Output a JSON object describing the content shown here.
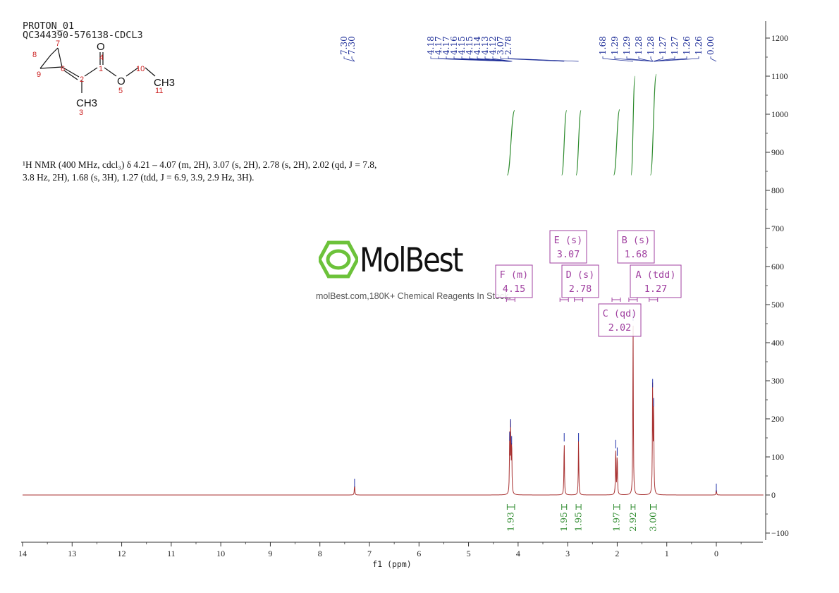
{
  "header": {
    "line1": "PROTON_01",
    "line2": "QC344390-576138-CDCL3"
  },
  "nmr_description": {
    "line1": "¹H NMR (400 MHz, cdcl₃) δ 4.21 – 4.07 (m, 2H), 3.07 (s, 2H), 2.78 (s, 2H), 2.02 (qd, J = 7.8,",
    "line2": "3.8 Hz, 2H), 1.68 (s, 3H), 1.27 (tdd, J = 6.9, 3.9, 2.9 Hz, 3H)."
  },
  "structure": {
    "atom_numbers": [
      "7",
      "8",
      "9",
      "6",
      "2",
      "3",
      "1",
      "4",
      "5",
      "10",
      "11"
    ],
    "atom_symbols": {
      "o_carbonyl": "O",
      "o_ester": "O",
      "ch3_ethyl": "CH3",
      "ch3_methyl": "CH3"
    }
  },
  "logo": {
    "word": "MolBest",
    "tagline": "molBest.com,180K+ Chemical Reagents In Stock."
  },
  "colors": {
    "spectrum": "#a83232",
    "peak_marks": "#2233aa",
    "integral": "#2e8b2e",
    "multiplet_box": "#a040a0",
    "label_blue": "#1f2f99"
  },
  "chart_data": {
    "type": "line",
    "xlabel": "f1 (ppm)",
    "x_axis_reversed": true,
    "xlim": [
      14,
      -1
    ],
    "ylim": [
      -120,
      1230
    ],
    "x_ticks": [
      14,
      13,
      12,
      11,
      10,
      9,
      8,
      7,
      6,
      5,
      4,
      3,
      2,
      1,
      0
    ],
    "y_ticks": [
      -100,
      0,
      100,
      200,
      300,
      400,
      500,
      600,
      700,
      800,
      900,
      1000,
      1100,
      1200
    ],
    "grid": false,
    "peaks": [
      {
        "ppm": 7.3,
        "height": 28
      },
      {
        "ppm": 4.17,
        "height": 150
      },
      {
        "ppm": 4.15,
        "height": 185
      },
      {
        "ppm": 4.13,
        "height": 140
      },
      {
        "ppm": 3.07,
        "height": 148
      },
      {
        "ppm": 2.78,
        "height": 148
      },
      {
        "ppm": 2.03,
        "height": 130
      },
      {
        "ppm": 2.0,
        "height": 110
      },
      {
        "ppm": 1.68,
        "height": 465
      },
      {
        "ppm": 1.285,
        "height": 290
      },
      {
        "ppm": 1.265,
        "height": 240
      },
      {
        "ppm": 0.0,
        "height": 15
      }
    ],
    "peak_labels": {
      "group1": [
        "7.30",
        "7.30"
      ],
      "group2": [
        "4.18",
        "4.17",
        "4.17",
        "4.16",
        "4.15",
        "4.15",
        "4.14",
        "4.13",
        "4.12",
        "3.07",
        "2.78"
      ],
      "group3": [
        "1.68",
        "1.29",
        "1.29",
        "1.28",
        "1.28",
        "1.27",
        "1.27",
        "1.26",
        "1.26",
        "0.00"
      ]
    },
    "integrals": [
      {
        "from": 4.22,
        "to": 4.07,
        "value": "1.93",
        "y_start": 840,
        "y_end": 1010
      },
      {
        "from": 3.12,
        "to": 3.02,
        "value": "1.95",
        "y_start": 840,
        "y_end": 1010
      },
      {
        "from": 2.83,
        "to": 2.73,
        "value": "1.95",
        "y_start": 840,
        "y_end": 1010
      },
      {
        "from": 2.07,
        "to": 1.95,
        "value": "1.97",
        "y_start": 840,
        "y_end": 1012
      },
      {
        "from": 1.72,
        "to": 1.64,
        "value": "2.92",
        "y_start": 840,
        "y_end": 1100
      },
      {
        "from": 1.33,
        "to": 1.21,
        "value": "3.00",
        "y_start": 840,
        "y_end": 1105
      }
    ],
    "multiplets": [
      {
        "letter": "F",
        "type": "m",
        "shift": "4.15"
      },
      {
        "letter": "E",
        "type": "s",
        "shift": "3.07"
      },
      {
        "letter": "D",
        "type": "s",
        "shift": "2.78"
      },
      {
        "letter": "C",
        "type": "qd",
        "shift": "2.02"
      },
      {
        "letter": "B",
        "type": "s",
        "shift": "1.68"
      },
      {
        "letter": "A",
        "type": "tdd",
        "shift": "1.27"
      }
    ]
  }
}
